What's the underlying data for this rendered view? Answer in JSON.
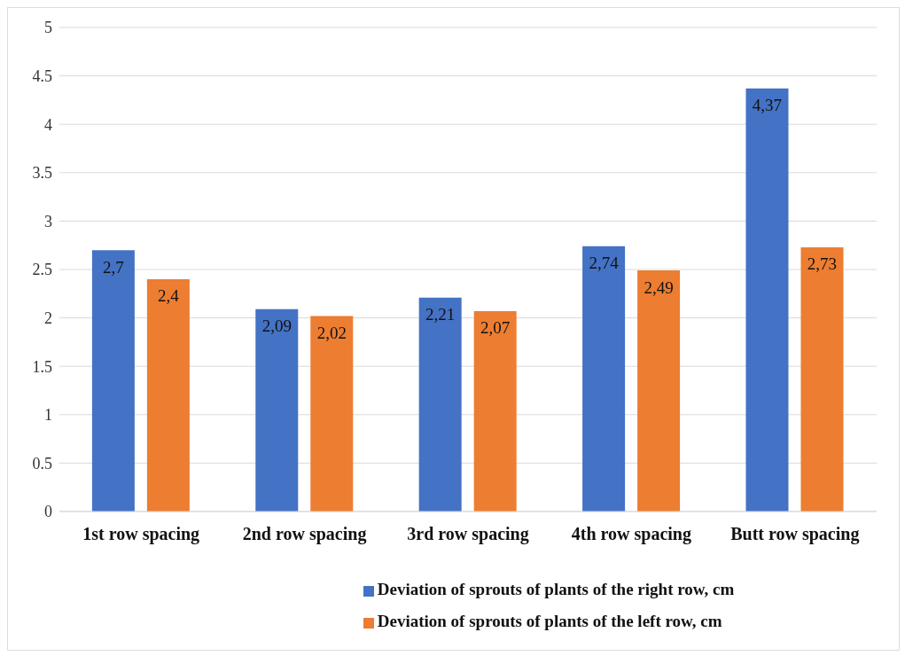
{
  "chart_data": {
    "type": "bar",
    "categories": [
      "1st row spacing",
      "2nd row spacing",
      "3rd row spacing",
      "4th row spacing",
      "Butt row spacing"
    ],
    "series": [
      {
        "name": "Deviation of sprouts of plants of the right row, cm",
        "color": "#4472c4",
        "values": [
          2.7,
          2.09,
          2.21,
          2.74,
          4.37
        ],
        "value_labels": [
          "2,7",
          "2,09",
          "2,21",
          "2,74",
          "4,37"
        ]
      },
      {
        "name": "Deviation of sprouts of plants of the left row, cm",
        "color": "#ed7d31",
        "values": [
          2.4,
          2.02,
          2.07,
          2.49,
          2.73
        ],
        "value_labels": [
          "2,4",
          "2,02",
          "2,07",
          "2,49",
          "2,73"
        ]
      }
    ],
    "ylim": [
      0,
      5
    ],
    "yticks": [
      0,
      0.5,
      1,
      1.5,
      2,
      2.5,
      3,
      3.5,
      4,
      4.5,
      5
    ],
    "grid": "y",
    "legend": "bottom"
  }
}
